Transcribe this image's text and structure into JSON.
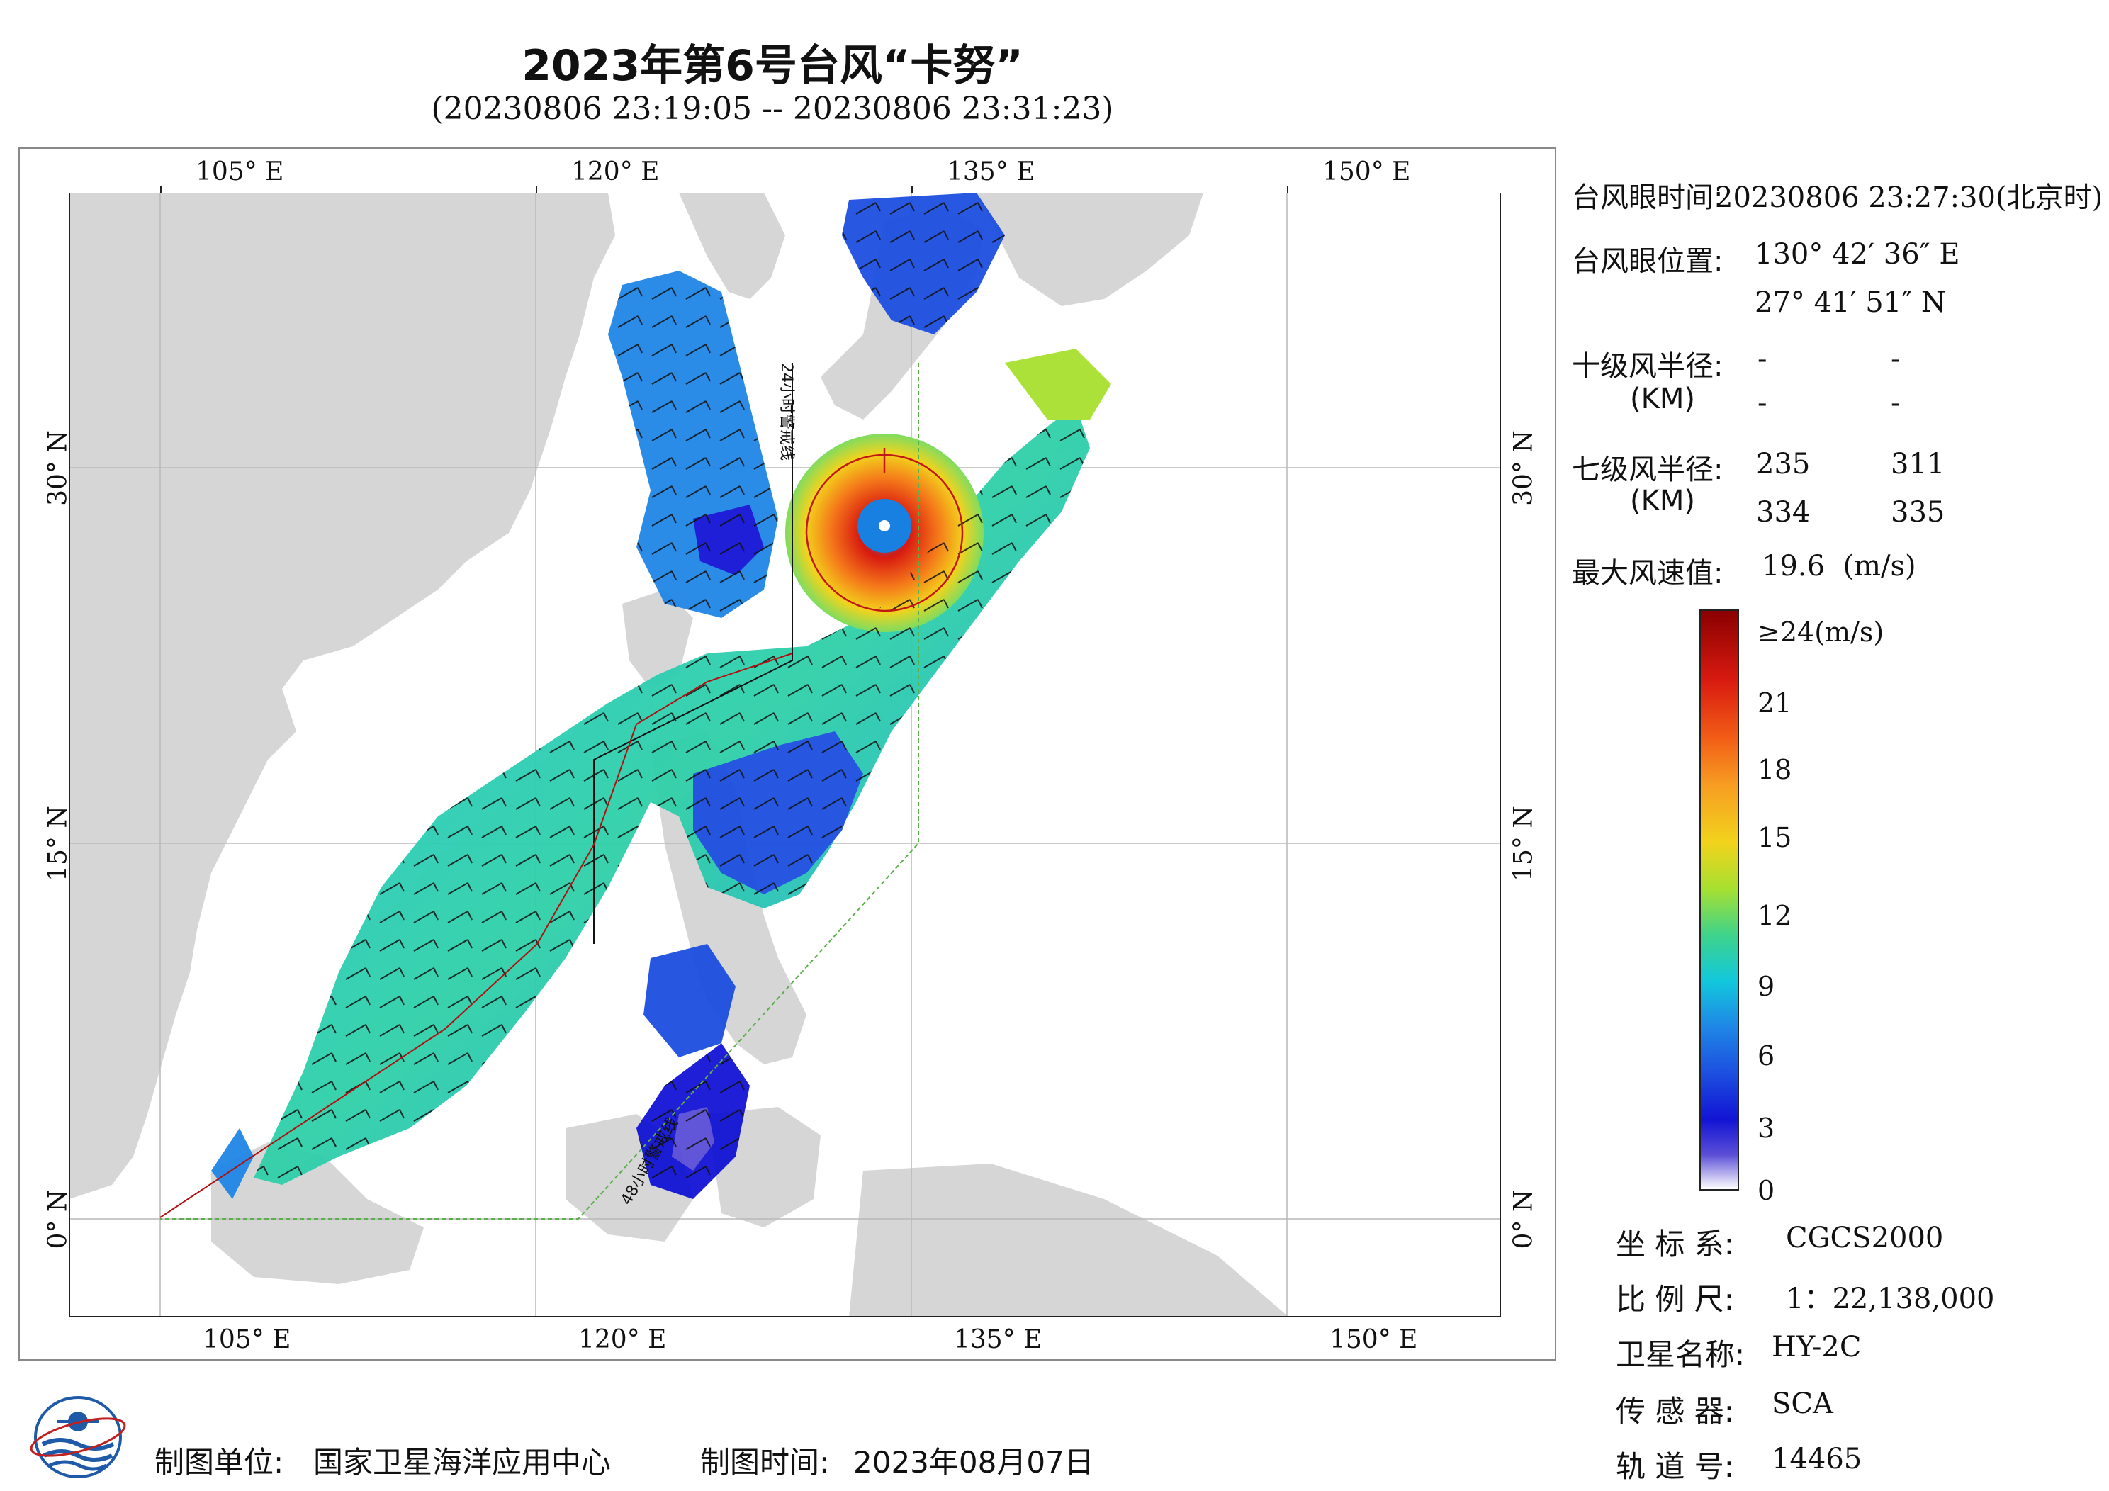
{
  "title": "2023年第6号台风“卡努”",
  "subtitle": "(20230806 23:19:05 -- 20230806 23:31:23)",
  "axes": {
    "lon_labels": [
      "105° E",
      "120° E",
      "135° E",
      "150° E"
    ],
    "lat_labels": [
      "30° N",
      "15° N",
      "0° N"
    ]
  },
  "map_labels": {
    "line24": "24小时警戒线",
    "line48": "48小时警戒线"
  },
  "info": {
    "eye_time_label": "台风眼时间:",
    "eye_time_value": "20230806 23:27:30(北京时)",
    "eye_pos_label": "台风眼位置:",
    "eye_lon": "130° 42′ 36″ E",
    "eye_lat": "27° 41′ 51″ N",
    "r10_label": "十级风半径:",
    "r10_unit": "(KM)",
    "r10_values": [
      "-",
      "-",
      "-",
      "-"
    ],
    "r7_label": "七级风半径:",
    "r7_unit": "(KM)",
    "r7_values": [
      "235",
      "311",
      "334",
      "335"
    ],
    "max_label": "最大风速值:",
    "max_value": "19.6  (m/s)"
  },
  "colorbar": {
    "labels": [
      "≥24(m/s)",
      "21",
      "18",
      "15",
      "12",
      "9",
      "6",
      "3",
      "0"
    ],
    "colors": [
      "#8a0000",
      "#d81a10",
      "#f25d16",
      "#f79c22",
      "#f2d31c",
      "#a8e030",
      "#3fd38a",
      "#12c8dc",
      "#1f86e6",
      "#1c4fe0",
      "#1214d4",
      "#5a4dd6",
      "#c9c6f0"
    ]
  },
  "meta": {
    "crs_label": "坐 标 系:",
    "crs_value": "CGCS2000",
    "scale_label": "比 例 尺:",
    "scale_value": "1：22,138,000",
    "sat_label": "卫星名称:",
    "sat_value": "HY-2C",
    "sensor_label": "传 感 器:",
    "sensor_value": "SCA",
    "orbit_label": "轨 道 号:",
    "orbit_value": "14465"
  },
  "footer": {
    "unit_label": "制图单位:",
    "unit_value": "国家卫星海洋应用中心",
    "time_label": "制图时间:",
    "time_value": "2023年08月07日"
  }
}
